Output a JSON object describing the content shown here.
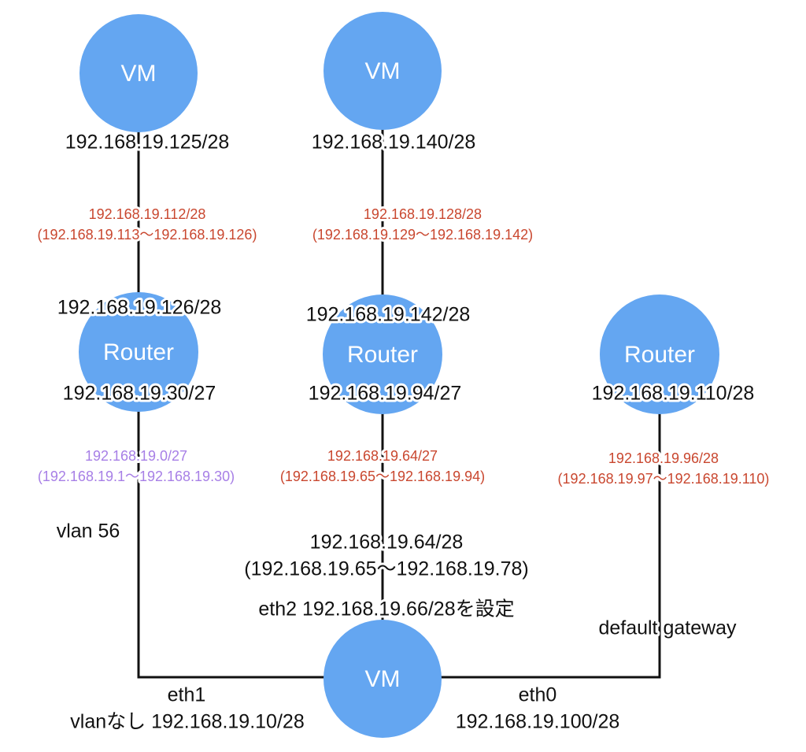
{
  "nodes": [
    {
      "label": "VM"
    },
    {
      "label": "VM"
    },
    {
      "label": "Router"
    },
    {
      "label": "Router"
    },
    {
      "label": "Router"
    },
    {
      "label": "VM"
    }
  ],
  "interfaces": [
    "192.168.19.125/28",
    "192.168.19.140/28",
    "192.168.19.126/28",
    "192.168.19.142/28",
    "192.168.19.30/27",
    "192.168.19.94/27",
    "192.168.19.110/28"
  ],
  "subnets": [
    {
      "network": "192.168.19.112/28",
      "range": "(192.168.19.113〜192.168.19.126)"
    },
    {
      "network": "192.168.19.128/28",
      "range": "(192.168.19.129〜192.168.19.142)"
    },
    {
      "network": "192.168.19.0/27",
      "range": "(192.168.19.1〜192.168.19.30)"
    },
    {
      "network": "192.168.19.64/27",
      "range": "(192.168.19.65〜192.168.19.94)"
    },
    {
      "network": "192.168.19.96/28",
      "range": "(192.168.19.97〜192.168.19.110)"
    }
  ],
  "notes": {
    "vlan": "vlan 56",
    "eth2_network": "192.168.19.64/28",
    "eth2_range": "(192.168.19.65〜192.168.19.78)",
    "eth2": "eth2 192.168.19.66/28を設定",
    "gateway": "default gateway",
    "eth1": "eth1",
    "eth1_addr": "vlanなし 192.168.19.10/28",
    "eth0": "eth0",
    "eth0_addr": "192.168.19.100/28"
  }
}
